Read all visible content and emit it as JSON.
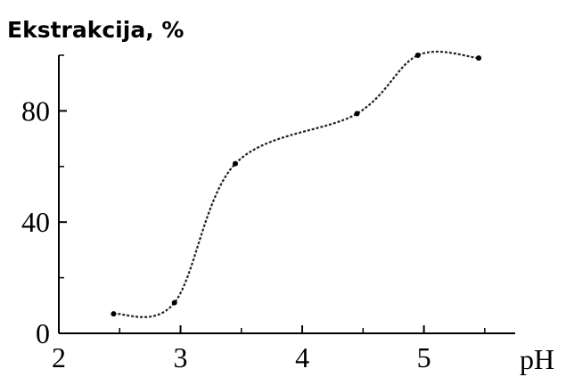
{
  "chart_data": {
    "type": "line",
    "ylabel": "Ekstrakcija, %",
    "xlabel": "pH",
    "xlim": [
      2,
      5.75
    ],
    "ylim": [
      0,
      100
    ],
    "x_ticks": [
      2,
      3,
      4,
      5
    ],
    "y_ticks": [
      0,
      40,
      80
    ],
    "y_minor_ticks": [
      20,
      60,
      100
    ],
    "x_minor_ticks": [
      2.5,
      3.5,
      4.5,
      5.5
    ],
    "grid": false,
    "series": [
      {
        "color": "#222222",
        "x": [
          2.45,
          2.95,
          3.45,
          4.45,
          4.95,
          5.45
        ],
        "y": [
          7,
          11,
          61,
          79,
          100,
          99
        ]
      }
    ]
  }
}
